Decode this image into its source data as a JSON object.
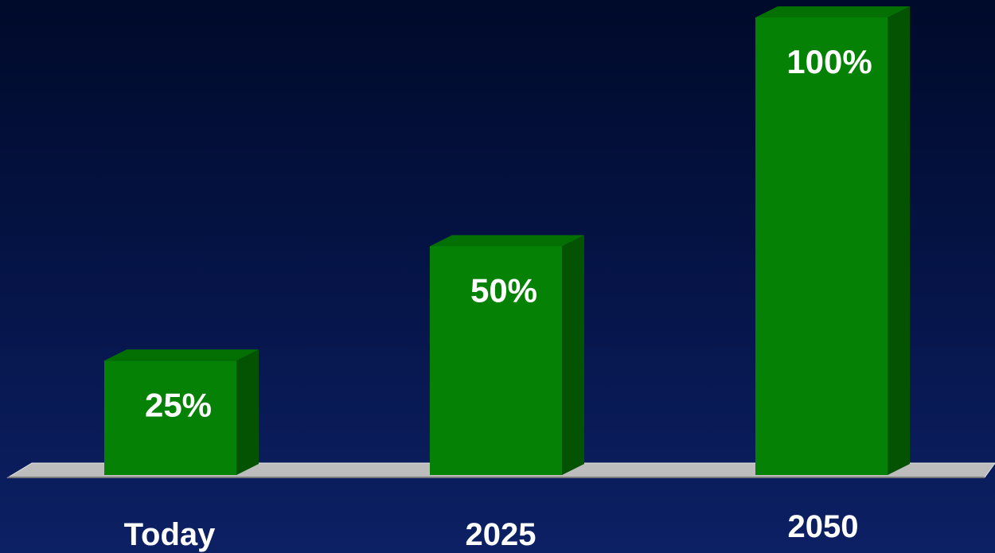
{
  "chart_data": {
    "type": "bar",
    "title": "",
    "xlabel": "",
    "ylabel": "",
    "categories": [
      "Today",
      "2025",
      "2050"
    ],
    "values": [
      25,
      50,
      100
    ],
    "data_labels": [
      "25%",
      "50%",
      "100%"
    ],
    "ylim": [
      0,
      100
    ],
    "grid": false,
    "style": "3d",
    "colors": {
      "bar_front": "#058205",
      "bar_side": "#035303",
      "bar_top": "#047004",
      "floor": "#bdbdbd",
      "label_text": "#ffffff"
    }
  }
}
